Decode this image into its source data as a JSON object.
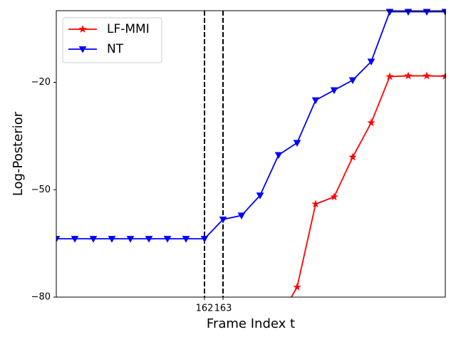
{
  "chart_data": {
    "type": "line",
    "x": [
      154,
      155,
      156,
      157,
      158,
      159,
      160,
      161,
      162,
      163,
      164,
      165,
      166,
      167,
      168,
      169,
      170,
      171,
      172,
      173,
      174,
      175
    ],
    "series": [
      {
        "name": "LF-MMI",
        "color": "#ff0000",
        "marker": "star",
        "values": [
          null,
          null,
          null,
          null,
          null,
          null,
          null,
          null,
          null,
          null,
          null,
          null,
          -86.2,
          -77.2,
          -54.0,
          -52.0,
          -40.9,
          -31.3,
          -18.4,
          -18.2,
          -18.2,
          -18.3
        ]
      },
      {
        "name": "NT",
        "color": "#0000ff",
        "marker": "triangle-down",
        "values": [
          -63.7,
          -63.7,
          -63.7,
          -63.7,
          -63.7,
          -63.7,
          -63.7,
          -63.7,
          -63.7,
          -58.3,
          -57.2,
          -51.6,
          -40.3,
          -36.9,
          -25.0,
          -22.2,
          -19.4,
          -14.2,
          -0.3,
          -0.3,
          -0.3,
          -0.3
        ]
      }
    ],
    "vlines": [
      162,
      163
    ],
    "xlabel": "Frame Index t",
    "ylabel": "Log-Posterior",
    "xlim": [
      154,
      175
    ],
    "ylim": [
      -80,
      0
    ],
    "xticks": [
      162,
      163
    ],
    "yticks": [
      {
        "value": -80,
        "label": "−80"
      },
      {
        "value": -50,
        "label": "−50"
      },
      {
        "value": -20,
        "label": "−20"
      }
    ],
    "legend": "upper left"
  }
}
